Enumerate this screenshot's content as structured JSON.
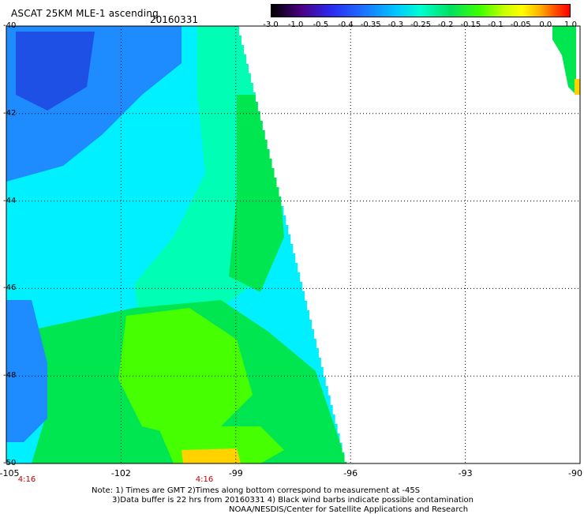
{
  "header": {
    "title": "ASCAT 25KM MLE-1 ascending",
    "date": "20160331"
  },
  "colorbar": {
    "labels": [
      "-3.0",
      "-1.0",
      "-0.5",
      "-0.4",
      "-0.35",
      "-0.3",
      "-0.25",
      "-0.2",
      "-0.15",
      "-0.1",
      "-0.05",
      "0.0",
      "1.0"
    ]
  },
  "map": {
    "lat_labels": [
      "-40",
      "-42",
      "-44",
      "-46",
      "-48",
      "-50"
    ],
    "lon_labels": [
      "-105",
      "-102",
      "-99",
      "-96",
      "-93",
      "-90"
    ],
    "time_labels": [
      "4:16",
      "4:16"
    ],
    "colors": {
      "deep_blue": "#1e50e6",
      "blue": "#1e8cff",
      "cyan": "#00f0ff",
      "aqua_green": "#00ffb4",
      "green": "#00e650",
      "lime": "#46ff00",
      "yellow": "#ffd200"
    }
  },
  "notes": {
    "line1": "Note: 1) Times are GMT 2)Times along bottom correspond to measurement at -45S",
    "line2": "3)Data buffer is 22 hrs from 20160331 4) Black wind barbs indicate possible contamination",
    "line3": "NOAA/NESDIS/Center for Satellite Applications and Research"
  }
}
